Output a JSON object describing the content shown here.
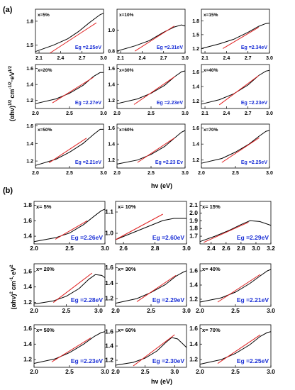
{
  "figure": {
    "colors": {
      "curve": "#000000",
      "fit": "#e02020",
      "eg": "#1a2fd6"
    },
    "panel_a": {
      "label": "(a)",
      "ylabel": "(αhν)^(1/2) cm^-1/2·eV^1/2",
      "xlabel": "hν (eV)",
      "ylabel_parts": {
        "base": "(αhν)",
        "exp1": "1/2",
        "unit": "cm",
        "exp2": "-1/2",
        "dot": "·",
        "eV": "eV",
        "exp3": "1/2"
      }
    },
    "panel_b": {
      "label": "(b)",
      "ylabel": "(αhν)^2 cm^-1·eV^2",
      "xlabel": "hν (eV)",
      "ylabel_parts": {
        "base": "(αhν)",
        "exp1": "2",
        "unit": "cm",
        "exp2": "-1",
        "dot": "·",
        "eV": "eV",
        "exp3": "2"
      }
    }
  },
  "chart_data": [
    {
      "type": "line",
      "panel": "a",
      "title": "x=5%",
      "eg_label": "Eg =2.25eV",
      "eg": 2.25,
      "xlim": [
        2.05,
        3.0
      ],
      "ylim": [
        1.4,
        1.95
      ],
      "xticks": [
        2.1,
        2.4,
        2.7,
        3.0
      ],
      "yticks": [
        1.5,
        1.8
      ],
      "curve": {
        "x": [
          2.05,
          2.3,
          2.5,
          2.65,
          2.8,
          2.95,
          3.0
        ],
        "y": [
          1.42,
          1.5,
          1.58,
          1.67,
          1.78,
          1.88,
          1.9
        ]
      },
      "fit": {
        "x": [
          2.25,
          2.9
        ],
        "y": [
          1.4,
          1.78
        ]
      }
    },
    {
      "type": "line",
      "panel": "a",
      "title": "x=10%",
      "eg_label": "Eg =2.31eV",
      "eg": 2.31,
      "xlim": [
        2.05,
        3.0
      ],
      "ylim": [
        0.78,
        1.2
      ],
      "xticks": [
        2.1,
        2.4,
        2.7,
        3.0
      ],
      "yticks": [
        0.8,
        1.0
      ],
      "curve": {
        "x": [
          2.05,
          2.3,
          2.5,
          2.7,
          2.85,
          2.95,
          3.0
        ],
        "y": [
          0.8,
          0.85,
          0.9,
          0.98,
          1.03,
          1.05,
          1.04
        ]
      },
      "fit": {
        "x": [
          2.3,
          2.85
        ],
        "y": [
          0.8,
          1.04
        ]
      }
    },
    {
      "type": "line",
      "panel": "a",
      "title": "x=15%",
      "eg_label": "Eg =2.34eV",
      "eg": 2.34,
      "xlim": [
        2.05,
        3.0
      ],
      "ylim": [
        1.1,
        2.05
      ],
      "xticks": [
        2.1,
        2.4,
        2.7,
        3.0
      ],
      "yticks": [
        1.2,
        1.5,
        1.8
      ],
      "curve": {
        "x": [
          2.05,
          2.3,
          2.5,
          2.7,
          2.85,
          2.95,
          3.0
        ],
        "y": [
          1.2,
          1.3,
          1.4,
          1.55,
          1.68,
          1.74,
          1.75
        ]
      },
      "fit": {
        "x": [
          2.35,
          2.85
        ],
        "y": [
          1.2,
          1.66
        ]
      }
    },
    {
      "type": "line",
      "panel": "a",
      "title": "x=20%",
      "eg_label": "Eg =2.27eV",
      "eg": 2.27,
      "xlim": [
        2.0,
        3.0
      ],
      "ylim": [
        1.1,
        1.65
      ],
      "xticks": [
        2.0,
        2.5,
        3.0
      ],
      "yticks": [
        1.2,
        1.4,
        1.6
      ],
      "curve": {
        "x": [
          2.0,
          2.3,
          2.5,
          2.7,
          2.85,
          2.95,
          3.0
        ],
        "y": [
          1.16,
          1.22,
          1.29,
          1.39,
          1.5,
          1.55,
          1.55
        ]
      },
      "fit": {
        "x": [
          2.25,
          2.85
        ],
        "y": [
          1.17,
          1.49
        ]
      }
    },
    {
      "type": "line",
      "panel": "a",
      "title": "x=30%",
      "eg_label": "Eg =2.23eV",
      "eg": 2.23,
      "xlim": [
        2.0,
        3.0
      ],
      "ylim": [
        1.1,
        1.65
      ],
      "xticks": [
        2.0,
        2.5,
        3.0
      ],
      "yticks": [
        1.2,
        1.4,
        1.6
      ],
      "curve": {
        "x": [
          2.0,
          2.3,
          2.5,
          2.7,
          2.85,
          2.95,
          3.0
        ],
        "y": [
          1.16,
          1.22,
          1.29,
          1.39,
          1.5,
          1.56,
          1.57
        ]
      },
      "fit": {
        "x": [
          2.25,
          2.85
        ],
        "y": [
          1.15,
          1.5
        ]
      }
    },
    {
      "type": "line",
      "panel": "a",
      "title": "x=40%",
      "eg_label": "Eg =2.23eV",
      "eg": 2.23,
      "xlim": [
        2.05,
        3.0
      ],
      "ylim": [
        1.1,
        1.7
      ],
      "xticks": [
        2.1,
        2.4,
        2.7,
        3.0
      ],
      "yticks": [
        1.2,
        1.4,
        1.6
      ],
      "curve": {
        "x": [
          2.05,
          2.3,
          2.5,
          2.7,
          2.85,
          2.95,
          3.0
        ],
        "y": [
          1.16,
          1.22,
          1.3,
          1.42,
          1.55,
          1.61,
          1.62
        ]
      },
      "fit": {
        "x": [
          2.3,
          2.85
        ],
        "y": [
          1.15,
          1.55
        ]
      }
    },
    {
      "type": "line",
      "panel": "a",
      "title": "x=50%",
      "eg_label": "Eg =2.21eV",
      "eg": 2.21,
      "xlim": [
        2.0,
        3.0
      ],
      "ylim": [
        1.12,
        1.62
      ],
      "xticks": [
        2.0,
        2.5,
        3.0
      ],
      "yticks": [
        1.2,
        1.4,
        1.6
      ],
      "curve": {
        "x": [
          2.0,
          2.3,
          2.5,
          2.7,
          2.85,
          2.95,
          3.0
        ],
        "y": [
          1.15,
          1.22,
          1.3,
          1.4,
          1.5,
          1.56,
          1.56
        ]
      },
      "fit": {
        "x": [
          2.2,
          2.75
        ],
        "y": [
          1.18,
          1.46
        ]
      }
    },
    {
      "type": "line",
      "panel": "a",
      "title": "x=60%",
      "eg_label": "Eg =2.23 Ev",
      "eg": 2.23,
      "xlim": [
        2.0,
        3.0
      ],
      "ylim": [
        1.1,
        1.65
      ],
      "xticks": [
        2.0,
        2.5,
        3.0
      ],
      "yticks": [
        1.2,
        1.4,
        1.6
      ],
      "curve": {
        "x": [
          2.0,
          2.3,
          2.5,
          2.7,
          2.85,
          2.95,
          3.0
        ],
        "y": [
          1.15,
          1.2,
          1.27,
          1.37,
          1.48,
          1.55,
          1.57
        ]
      },
      "fit": {
        "x": [
          2.3,
          2.85
        ],
        "y": [
          1.17,
          1.48
        ]
      }
    },
    {
      "type": "line",
      "panel": "a",
      "title": "x=70%",
      "eg_label": "Eg =2.25eV",
      "eg": 2.25,
      "xlim": [
        2.0,
        3.0
      ],
      "ylim": [
        1.1,
        1.65
      ],
      "xticks": [
        2.0,
        2.5,
        3.0
      ],
      "yticks": [
        1.2,
        1.4,
        1.6
      ],
      "curve": {
        "x": [
          2.0,
          2.3,
          2.5,
          2.7,
          2.85,
          2.95,
          3.0
        ],
        "y": [
          1.16,
          1.22,
          1.3,
          1.4,
          1.5,
          1.56,
          1.57
        ]
      },
      "fit": {
        "x": [
          2.3,
          2.85
        ],
        "y": [
          1.17,
          1.48
        ]
      }
    },
    {
      "type": "line",
      "panel": "b",
      "title": "x= 5%",
      "eg_label": "Eg =2.26eV",
      "eg": 2.26,
      "xlim": [
        2.0,
        3.0
      ],
      "ylim": [
        1.3,
        1.85
      ],
      "xticks": [
        2.0,
        2.5,
        3.0
      ],
      "yticks": [
        1.4,
        1.6,
        1.8
      ],
      "curve": {
        "x": [
          2.0,
          2.3,
          2.5,
          2.7,
          2.85,
          2.95,
          3.0
        ],
        "y": [
          1.33,
          1.38,
          1.44,
          1.55,
          1.66,
          1.73,
          1.75
        ]
      },
      "fit": {
        "x": [
          2.3,
          2.75
        ],
        "y": [
          1.36,
          1.6
        ]
      }
    },
    {
      "type": "line",
      "panel": "b",
      "title": "x= 10%",
      "eg_label": "Eg =2.60eV",
      "eg": 2.6,
      "xlim": [
        2.55,
        3.0
      ],
      "ylim": [
        0.95,
        1.15
      ],
      "xticks": [
        2.6,
        2.8,
        3.0
      ],
      "yticks": [
        1.0,
        1.1
      ],
      "curve": {
        "x": [
          2.55,
          2.65,
          2.75,
          2.85,
          2.92,
          3.0
        ],
        "y": [
          0.97,
          1.0,
          1.03,
          1.06,
          1.07,
          1.07
        ]
      },
      "fit": {
        "x": [
          2.55,
          2.85
        ],
        "y": [
          0.97,
          1.09
        ]
      }
    },
    {
      "type": "line",
      "panel": "b",
      "title": "x= 15%",
      "eg_label": "Eg =2.29eV",
      "eg": 2.29,
      "xlim": [
        2.25,
        3.2
      ],
      "ylim": [
        1.6,
        2.15
      ],
      "xticks": [
        2.4,
        2.6,
        2.8,
        3.0,
        3.2
      ],
      "yticks": [
        1.7,
        1.8,
        1.9,
        2.0,
        2.1
      ],
      "curve": {
        "x": [
          2.25,
          2.45,
          2.65,
          2.8,
          2.92,
          3.05,
          3.2
        ],
        "y": [
          1.63,
          1.7,
          1.78,
          1.85,
          1.9,
          1.89,
          1.84
        ]
      },
      "fit": {
        "x": [
          2.3,
          2.9
        ],
        "y": [
          1.62,
          1.88
        ]
      }
    },
    {
      "type": "line",
      "panel": "b",
      "title": "x= 20%",
      "eg_label": "Eg =2.28eV",
      "eg": 2.28,
      "xlim": [
        2.0,
        3.1
      ],
      "ylim": [
        1.15,
        1.7
      ],
      "xticks": [
        2.0,
        2.5,
        3.0
      ],
      "yticks": [
        1.2,
        1.4,
        1.6
      ],
      "curve": {
        "x": [
          2.0,
          2.3,
          2.5,
          2.7,
          2.85,
          2.95,
          3.05,
          3.1
        ],
        "y": [
          1.18,
          1.22,
          1.28,
          1.38,
          1.5,
          1.56,
          1.55,
          1.52
        ]
      },
      "fit": {
        "x": [
          2.3,
          2.9
        ],
        "y": [
          1.2,
          1.58
        ]
      }
    },
    {
      "type": "line",
      "panel": "b",
      "title": "x= 30%",
      "eg_label": "Eg =2.29eV",
      "eg": 2.29,
      "xlim": [
        2.0,
        3.0
      ],
      "ylim": [
        1.1,
        1.65
      ],
      "xticks": [
        2.0,
        2.5,
        3.0
      ],
      "yticks": [
        1.2,
        1.4,
        1.6
      ],
      "curve": {
        "x": [
          2.0,
          2.3,
          2.5,
          2.7,
          2.85,
          2.95,
          3.0
        ],
        "y": [
          1.14,
          1.2,
          1.28,
          1.38,
          1.49,
          1.54,
          1.56
        ]
      },
      "fit": {
        "x": [
          2.3,
          2.85
        ],
        "y": [
          1.16,
          1.5
        ]
      }
    },
    {
      "type": "line",
      "panel": "b",
      "title": "x= 40%",
      "eg_label": "Eg =2.21eV",
      "eg": 2.21,
      "xlim": [
        2.0,
        3.0
      ],
      "ylim": [
        1.1,
        1.7
      ],
      "xticks": [
        2.0,
        2.5,
        3.0
      ],
      "yticks": [
        1.2,
        1.4,
        1.6
      ],
      "curve": {
        "x": [
          2.0,
          2.3,
          2.5,
          2.7,
          2.85,
          2.95,
          3.0
        ],
        "y": [
          1.16,
          1.22,
          1.3,
          1.42,
          1.53,
          1.6,
          1.62
        ]
      },
      "fit": {
        "x": [
          2.25,
          2.85
        ],
        "y": [
          1.16,
          1.55
        ]
      }
    },
    {
      "type": "line",
      "panel": "b",
      "title": "x= 50%",
      "eg_label": "Eg =2.23eV",
      "eg": 2.23,
      "xlim": [
        2.0,
        3.0
      ],
      "ylim": [
        1.1,
        1.65
      ],
      "xticks": [
        2.0,
        2.5,
        3.0
      ],
      "yticks": [
        1.2,
        1.4,
        1.6
      ],
      "curve": {
        "x": [
          2.0,
          2.3,
          2.5,
          2.7,
          2.85,
          2.95,
          3.0
        ],
        "y": [
          1.15,
          1.21,
          1.29,
          1.4,
          1.5,
          1.55,
          1.56
        ]
      },
      "fit": {
        "x": [
          2.25,
          2.8
        ],
        "y": [
          1.17,
          1.48
        ]
      }
    },
    {
      "type": "line",
      "panel": "b",
      "title": "x= 60%",
      "eg_label": "Eg =2.30eV",
      "eg": 2.3,
      "xlim": [
        2.0,
        3.2
      ],
      "ylim": [
        1.1,
        1.7
      ],
      "xticks": [
        2.0,
        2.5,
        3.0
      ],
      "yticks": [
        1.2,
        1.4,
        1.6
      ],
      "curve": {
        "x": [
          2.0,
          2.3,
          2.5,
          2.7,
          2.85,
          2.95,
          3.05,
          3.2
        ],
        "y": [
          1.13,
          1.17,
          1.23,
          1.33,
          1.45,
          1.52,
          1.5,
          1.38
        ]
      },
      "fit": {
        "x": [
          2.3,
          3.0
        ],
        "y": [
          1.12,
          1.56
        ]
      }
    },
    {
      "type": "line",
      "panel": "b",
      "title": "x= 70%",
      "eg_label": "Eg =2.25eV",
      "eg": 2.25,
      "xlim": [
        2.0,
        3.0
      ],
      "ylim": [
        1.1,
        1.65
      ],
      "xticks": [
        2.0,
        2.5,
        3.0
      ],
      "yticks": [
        1.2,
        1.4,
        1.6
      ],
      "curve": {
        "x": [
          2.0,
          2.3,
          2.5,
          2.7,
          2.85,
          2.95,
          3.0
        ],
        "y": [
          1.14,
          1.2,
          1.28,
          1.39,
          1.5,
          1.55,
          1.56
        ]
      },
      "fit": {
        "x": [
          2.25,
          2.85
        ],
        "y": [
          1.15,
          1.52
        ]
      }
    }
  ]
}
